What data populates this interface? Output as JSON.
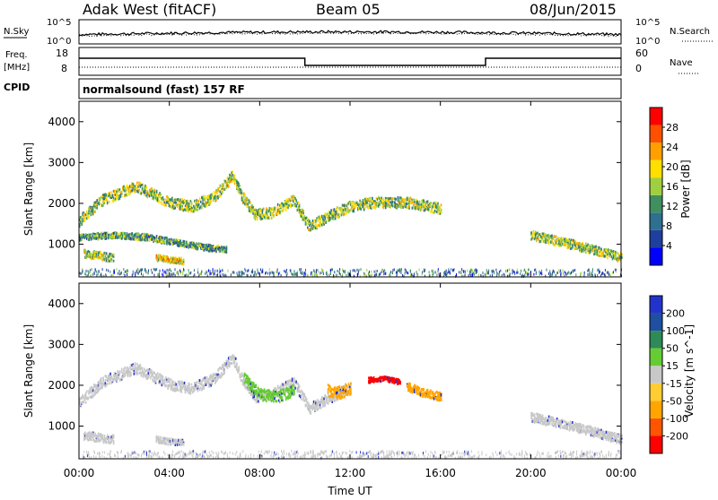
{
  "header": {
    "station": "Adak West (fitACF)",
    "beam": "Beam 05",
    "date": "08/Jun/2015"
  },
  "top_panels": {
    "nsky_label": "N.Sky",
    "nsearch_label": "N.Search",
    "log_top_label": "10^5",
    "log_bottom_label": "10^0",
    "freq_label_line1": "Freq.",
    "freq_label_line2": "[MHz]",
    "freq_ticks": [
      "18",
      "8"
    ],
    "nave_label": "Nave",
    "nave_ticks": [
      "60",
      "0"
    ],
    "cpid_label": "CPID",
    "cpid_text": "normalsound (fast) 157 RF"
  },
  "x_axis": {
    "label": "Time UT",
    "ticks": [
      "00:00",
      "04:00",
      "08:00",
      "12:00",
      "16:00",
      "20:00",
      "00:00"
    ]
  },
  "colors": {
    "power": [
      "#0000ff",
      "#1f3f9f",
      "#2f6f8f",
      "#3f8f5f",
      "#9fcf3f",
      "#ffdf00",
      "#ffa000",
      "#ff5000",
      "#ff0000"
    ],
    "velocity": [
      "#ff0000",
      "#ff5500",
      "#ffa500",
      "#ffcc33",
      "#c8c8c8",
      "#66cc33",
      "#2e8b57",
      "#1e4fa0",
      "#2233cc"
    ]
  },
  "chart_data": [
    {
      "type": "heatmap",
      "title": "Power",
      "ylabel": "Slant Range [km]",
      "ylim": [
        200,
        4500
      ],
      "yticks": [
        "4000",
        "3000",
        "2000",
        "1000"
      ],
      "xlabel": "Time UT",
      "colorbar_label": "Power [dB]",
      "colorbar_ticks": [
        "28",
        "24",
        "20",
        "16",
        "12",
        "8",
        "4"
      ],
      "bands": [
        {
          "t": [
            0.0,
            1.0,
            2.5,
            4.0,
            5.0,
            6.0,
            6.8,
            7.2,
            7.8,
            8.5,
            9.5,
            10.2,
            11.0,
            12.0,
            13.0,
            14.5,
            16.0
          ],
          "range": [
            1600,
            2100,
            2450,
            2050,
            1950,
            2200,
            2700,
            2200,
            1750,
            1800,
            2100,
            1450,
            1700,
            1950,
            2050,
            2050,
            1900
          ],
          "spread": 260,
          "level": 14
        },
        {
          "t": [
            0.0,
            1.5,
            3.0,
            4.5,
            5.5,
            6.5
          ],
          "range": [
            1200,
            1250,
            1200,
            1050,
            950,
            900
          ],
          "spread": 150,
          "level": 10
        },
        {
          "t": [
            0.2,
            0.8,
            1.5
          ],
          "range": [
            800,
            750,
            700
          ],
          "spread": 200,
          "level": 16
        },
        {
          "t": [
            3.4,
            4.0,
            4.6
          ],
          "range": [
            700,
            650,
            620
          ],
          "spread": 150,
          "level": 20
        },
        {
          "t": [
            20.0,
            22.0,
            24.0
          ],
          "range": [
            1250,
            1000,
            700
          ],
          "spread": 220,
          "level": 16
        }
      ]
    },
    {
      "type": "heatmap",
      "title": "Velocity",
      "ylabel": "Slant Range [km]",
      "ylim": [
        200,
        4500
      ],
      "yticks": [
        "4000",
        "3000",
        "2000",
        "1000"
      ],
      "xlabel": "Time UT",
      "colorbar_label": "Velocity [m s^-1]",
      "colorbar_ticks": [
        "200",
        "100",
        "50",
        "15",
        "-15",
        "-50",
        "-100",
        "-200"
      ],
      "bands": [
        {
          "t": [
            0.0,
            1.0,
            2.5,
            4.0,
            5.0,
            6.0,
            6.8,
            7.2,
            7.8,
            8.5,
            9.5,
            10.2,
            11.0,
            12.0
          ],
          "range": [
            1600,
            2100,
            2450,
            2050,
            1950,
            2200,
            2700,
            2200,
            1750,
            1800,
            2100,
            1450,
            1700,
            1950
          ],
          "spread": 260,
          "velocity": 0
        },
        {
          "t": [
            7.3,
            8.0,
            8.8,
            9.5
          ],
          "range": [
            2200,
            1800,
            1750,
            1900
          ],
          "spread": 280,
          "velocity": 30
        },
        {
          "t": [
            11.0,
            11.5,
            12.0
          ],
          "range": [
            1900,
            1850,
            1950
          ],
          "spread": 300,
          "velocity": -40
        },
        {
          "t": [
            14.5,
            15.2,
            16.0
          ],
          "range": [
            2000,
            1850,
            1750
          ],
          "spread": 200,
          "velocity": -60
        },
        {
          "t": [
            12.8,
            13.5,
            14.2
          ],
          "range": [
            2150,
            2200,
            2100
          ],
          "spread": 120,
          "velocity": -150
        },
        {
          "t": [
            20.0,
            22.0,
            24.0
          ],
          "range": [
            1250,
            1000,
            700
          ],
          "spread": 220,
          "velocity": 0
        },
        {
          "t": [
            0.2,
            0.8,
            1.5
          ],
          "range": [
            800,
            750,
            700
          ],
          "spread": 200,
          "velocity": 0
        },
        {
          "t": [
            3.4,
            4.0,
            4.6
          ],
          "range": [
            700,
            650,
            620
          ],
          "spread": 150,
          "velocity": 0
        }
      ]
    }
  ]
}
